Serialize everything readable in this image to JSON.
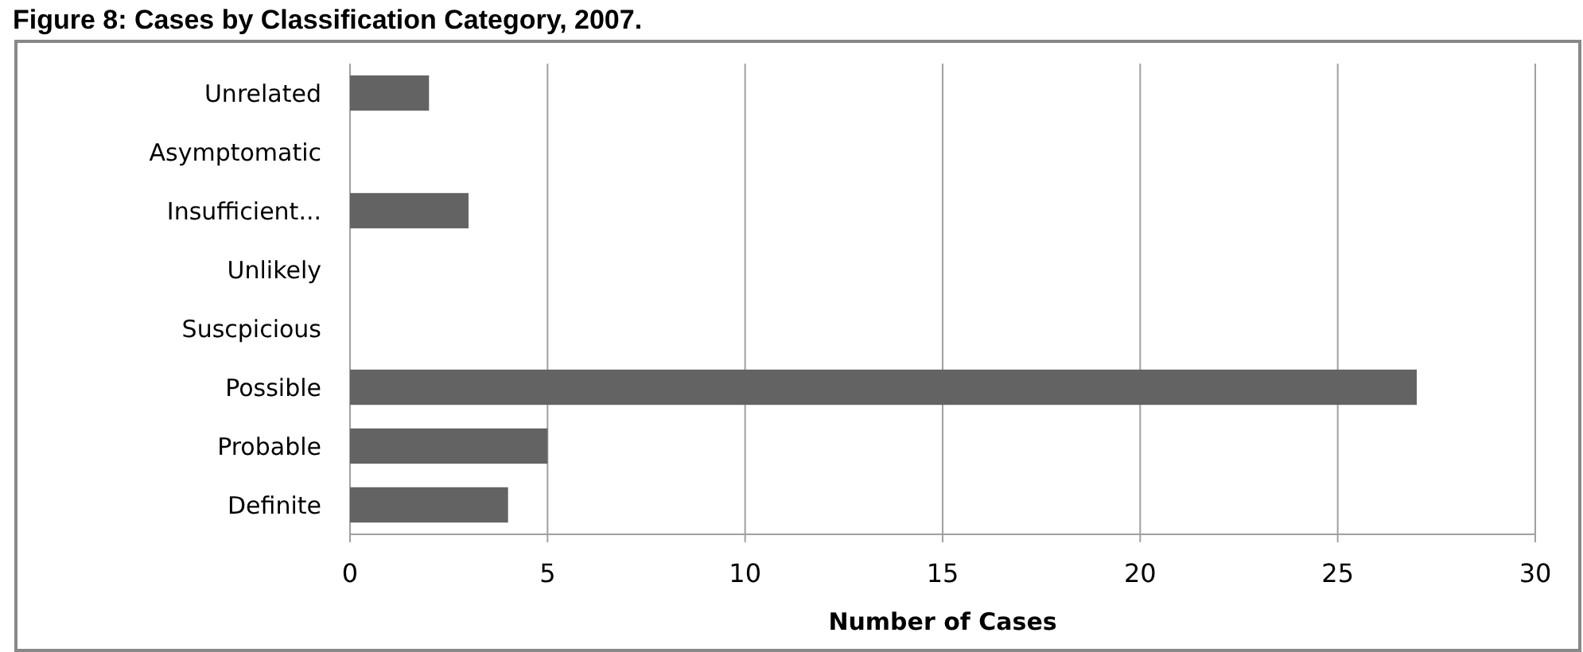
{
  "chart_data": {
    "type": "bar",
    "orientation": "horizontal",
    "title": "Figure 8: Cases by Classification Category, 2007.",
    "xlabel": "Number of Cases",
    "categories": [
      "Unrelated",
      "Asymptomatic",
      "Insufficient...",
      "Unlikely",
      "Suscpicious",
      "Possible",
      "Probable",
      "Definite"
    ],
    "values": [
      2,
      0,
      3,
      0,
      0,
      27,
      5,
      4
    ],
    "color": "#636363",
    "xlim": [
      0,
      30
    ],
    "xticks": [
      0,
      5,
      10,
      15,
      20,
      25,
      30
    ],
    "grid": "x"
  }
}
